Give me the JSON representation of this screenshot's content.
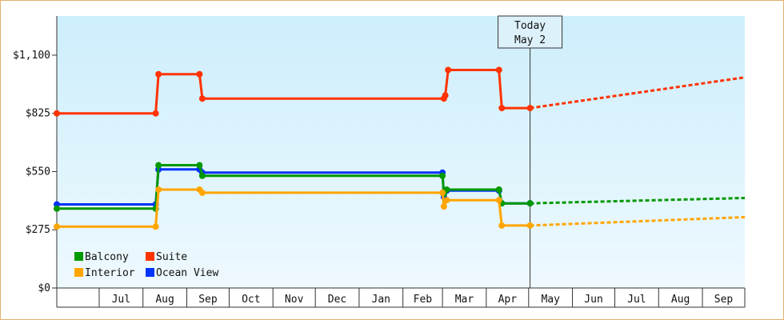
{
  "chart_data": {
    "type": "line",
    "y_axis": {
      "ticks": [
        {
          "value": 0,
          "label": "$0"
        },
        {
          "value": 275,
          "label": "$275"
        },
        {
          "value": 550,
          "label": "$550"
        },
        {
          "value": 825,
          "label": "$825"
        },
        {
          "value": 1100,
          "label": "$1,100"
        }
      ],
      "ylim": [
        0,
        1285
      ]
    },
    "x_axis": {
      "range": [
        "2025-06-01",
        "2026-10-01"
      ],
      "months": [
        {
          "label": "Jul",
          "start": "2025-07-01"
        },
        {
          "label": "Aug",
          "start": "2025-08-01"
        },
        {
          "label": "Sep",
          "start": "2025-09-01"
        },
        {
          "label": "Oct",
          "start": "2025-10-01"
        },
        {
          "label": "Nov",
          "start": "2025-11-01"
        },
        {
          "label": "Dec",
          "start": "2025-12-01"
        },
        {
          "label": "Jan",
          "start": "2026-01-01"
        },
        {
          "label": "Feb",
          "start": "2026-02-01"
        },
        {
          "label": "Mar",
          "start": "2026-03-01"
        },
        {
          "label": "Apr",
          "start": "2026-04-01"
        },
        {
          "label": "May",
          "start": "2026-05-01"
        },
        {
          "label": "Jun",
          "start": "2026-06-01"
        },
        {
          "label": "Jul",
          "start": "2026-07-01"
        },
        {
          "label": "Aug",
          "start": "2026-08-01"
        },
        {
          "label": "Sep",
          "start": "2026-09-01"
        }
      ]
    },
    "today": {
      "date": "2026-05-02",
      "line1": "Today",
      "line2": "May 2"
    },
    "series": [
      {
        "name": "Suite",
        "color": "#ff3300",
        "points": [
          [
            "2025-06-01",
            825
          ],
          [
            "2025-08-10",
            825
          ],
          [
            "2025-08-12",
            1010
          ],
          [
            "2025-09-10",
            1010
          ],
          [
            "2025-09-12",
            895
          ],
          [
            "2026-03-02",
            895
          ],
          [
            "2026-03-03",
            910
          ],
          [
            "2026-03-05",
            1030
          ],
          [
            "2026-04-10",
            1030
          ],
          [
            "2026-04-12",
            850
          ],
          [
            "2026-05-02",
            850
          ]
        ],
        "projection": [
          [
            "2026-05-02",
            850
          ],
          [
            "2026-10-01",
            995
          ]
        ]
      },
      {
        "name": "Ocean View",
        "color": "#0033ff",
        "points": [
          [
            "2025-06-01",
            395
          ],
          [
            "2025-08-10",
            395
          ],
          [
            "2025-08-12",
            560
          ],
          [
            "2025-09-10",
            560
          ],
          [
            "2025-09-12",
            545
          ],
          [
            "2026-03-01",
            545
          ],
          [
            "2026-03-02",
            430
          ],
          [
            "2026-03-04",
            460
          ],
          [
            "2026-04-10",
            460
          ],
          [
            "2026-04-12",
            400
          ],
          [
            "2026-05-02",
            400
          ]
        ],
        "projection": []
      },
      {
        "name": "Balcony",
        "color": "#009900",
        "points": [
          [
            "2025-06-01",
            375
          ],
          [
            "2025-08-10",
            375
          ],
          [
            "2025-08-12",
            580
          ],
          [
            "2025-09-10",
            580
          ],
          [
            "2025-09-12",
            530
          ],
          [
            "2026-03-01",
            530
          ],
          [
            "2026-03-02",
            445
          ],
          [
            "2026-03-04",
            465
          ],
          [
            "2026-04-10",
            465
          ],
          [
            "2026-04-12",
            400
          ],
          [
            "2026-05-02",
            400
          ]
        ],
        "projection": [
          [
            "2026-05-02",
            400
          ],
          [
            "2026-10-01",
            425
          ]
        ]
      },
      {
        "name": "Interior",
        "color": "#ffa500",
        "points": [
          [
            "2025-06-01",
            290
          ],
          [
            "2025-08-10",
            290
          ],
          [
            "2025-08-12",
            465
          ],
          [
            "2025-09-10",
            465
          ],
          [
            "2025-09-12",
            450
          ],
          [
            "2026-03-01",
            450
          ],
          [
            "2026-03-02",
            385
          ],
          [
            "2026-03-04",
            415
          ],
          [
            "2026-04-10",
            415
          ],
          [
            "2026-04-12",
            295
          ],
          [
            "2026-05-02",
            295
          ]
        ],
        "projection": [
          [
            "2026-05-02",
            295
          ],
          [
            "2026-10-01",
            335
          ]
        ]
      }
    ],
    "legend": {
      "placement": "bottom-left",
      "rows": [
        [
          {
            "name": "Balcony",
            "color": "#009900"
          },
          {
            "name": "Suite",
            "color": "#ff3300"
          }
        ],
        [
          {
            "name": "Interior",
            "color": "#ffa500"
          },
          {
            "name": "Ocean View",
            "color": "#0033ff"
          }
        ]
      ]
    },
    "grid": false
  }
}
